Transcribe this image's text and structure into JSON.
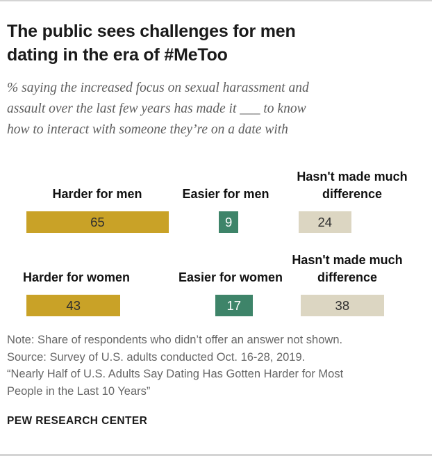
{
  "header": {
    "title": "The public sees challenges for men dating in the era of #MeToo",
    "title_lines": [
      "The public sees challenges for men",
      "dating in the era of #MeToo"
    ],
    "subtitle": "% saying the increased focus on sexual harassment and assault over the last few years has made it ___ to know how to interact with someone they’re on a date with",
    "subtitle_lines": [
      "% saying the increased focus on sexual harassment and",
      "assault over the last few years has made it ___ to know",
      "how to interact with someone they’re on a date with"
    ]
  },
  "chart_data": {
    "type": "bar",
    "orientation": "horizontal",
    "unit": "%",
    "value_range": [
      0,
      100
    ],
    "grid": false,
    "legend": false,
    "colors": {
      "harder": "#C9A227",
      "easier": "#3E8469",
      "no_difference": "#DCD6C2"
    },
    "rows": [
      {
        "group": "men",
        "bars": [
          {
            "label": "Harder for men",
            "value": 65,
            "color": "#C9A227",
            "text_color": "#2f2f2f"
          },
          {
            "label": "Easier for men",
            "value": 9,
            "color": "#3E8469",
            "text_color": "#ffffff"
          },
          {
            "label": "Hasn't made much difference",
            "value": 24,
            "color": "#DCD6C2",
            "text_color": "#2f2f2f"
          }
        ]
      },
      {
        "group": "women",
        "bars": [
          {
            "label": "Harder for women",
            "value": 43,
            "color": "#C9A227",
            "text_color": "#2f2f2f"
          },
          {
            "label": "Easier for women",
            "value": 17,
            "color": "#3E8469",
            "text_color": "#ffffff"
          },
          {
            "label": "Hasn't made much difference",
            "value": 38,
            "color": "#DCD6C2",
            "text_color": "#2f2f2f"
          }
        ]
      }
    ]
  },
  "footer": {
    "notes_lines": [
      "Note: Share of respondents who didn’t offer an answer not shown.",
      "Source: Survey of U.S. adults conducted Oct. 16-28, 2019.",
      "“Nearly Half of U.S. Adults Say Dating Has Gotten Harder for Most",
      "People in the Last 10 Years”"
    ],
    "brand": "PEW RESEARCH CENTER"
  }
}
